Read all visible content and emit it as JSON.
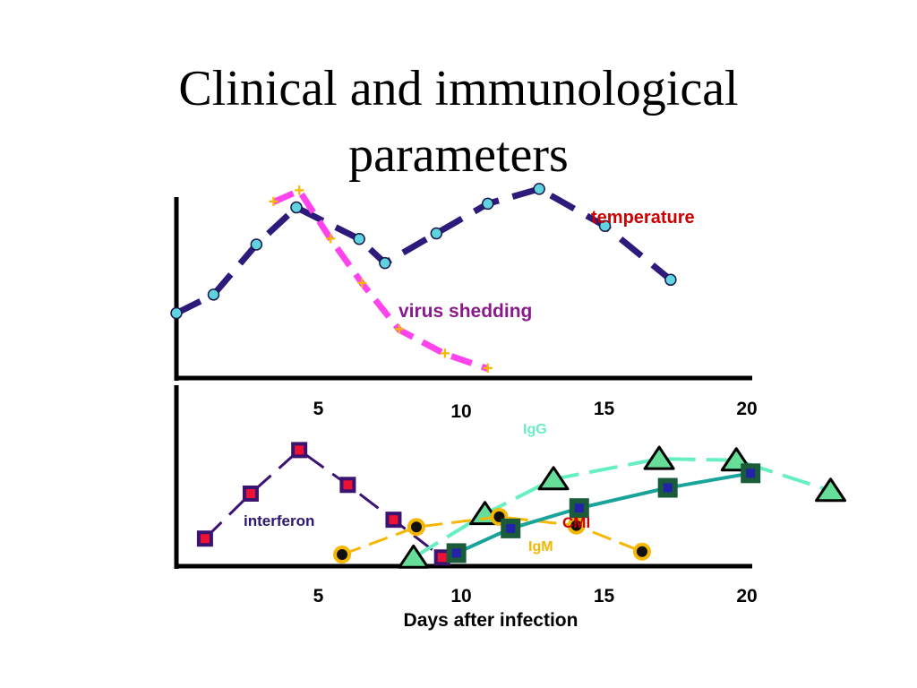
{
  "title_lines": [
    "Clinical and immunological",
    "parameters"
  ],
  "chart_data": [
    {
      "type": "line",
      "panel": "top",
      "x_range": [
        0,
        20
      ],
      "y_range": [
        0,
        10
      ],
      "axes_drawn": [
        "left",
        "bottom"
      ],
      "series": [
        {
          "name": "temperature",
          "color": "#2e1a7a",
          "marker": "circle",
          "marker_fill": "#5fd3e0",
          "label_color": "#cc0000",
          "x": [
            0,
            1.3,
            2.8,
            4.2,
            6.4,
            7.3,
            9.1,
            10.9,
            12.7,
            15.0,
            17.3
          ],
          "y": [
            3.5,
            4.5,
            7.2,
            9.2,
            7.5,
            6.2,
            7.8,
            9.4,
            10.2,
            8.2,
            5.3
          ]
        },
        {
          "name": "virus shedding",
          "color": "#ff44ee",
          "marker": "plus",
          "marker_color": "#f5b700",
          "label_color": "#8a1a8a",
          "x": [
            3.4,
            4.3,
            5.4,
            6.5,
            7.8,
            9.4,
            10.9
          ],
          "y": [
            9.5,
            10.1,
            7.5,
            5.1,
            2.6,
            1.3,
            0.5
          ]
        }
      ]
    },
    {
      "type": "line",
      "panel": "bottom",
      "x_range": [
        0,
        20
      ],
      "y_range": [
        0,
        10
      ],
      "xlabel": "Days after infection",
      "x_ticks_top": [
        "5",
        "10",
        "15",
        "20"
      ],
      "x_ticks_bottom": [
        "5",
        "10",
        "15",
        "20"
      ],
      "series": [
        {
          "name": "interferon",
          "color": "#3a1470",
          "marker": "square",
          "marker_fill": "#ee1133",
          "label_color": "#2b1670",
          "x": [
            1.0,
            2.6,
            4.3,
            6.0,
            7.6,
            9.3
          ],
          "y": [
            1.9,
            5.0,
            8.0,
            5.6,
            3.2,
            0.6
          ]
        },
        {
          "name": "IgG",
          "color": "#66f0c0",
          "marker": "triangle",
          "marker_fill": "#66dd99",
          "label_color": "#66f0c0",
          "x": [
            8.3,
            10.8,
            13.2,
            16.9,
            19.6,
            22.9
          ],
          "y": [
            0.6,
            3.6,
            6.0,
            7.4,
            7.3,
            5.2
          ]
        },
        {
          "name": "IgM",
          "color": "#f5b700",
          "marker": "dot-ring",
          "marker_fill": "#111111",
          "label_color": "#f5b700",
          "x": [
            5.8,
            8.4,
            11.3,
            14.0,
            16.3
          ],
          "y": [
            0.8,
            2.7,
            3.4,
            2.8,
            1.0
          ]
        },
        {
          "name": "CMI",
          "color": "#1aa39a",
          "marker": "square",
          "marker_fill": "#2222aa",
          "marker_border": "#1a5c3a",
          "label_color": "#cc0000",
          "x": [
            9.8,
            11.7,
            14.1,
            17.2,
            20.1
          ],
          "y": [
            0.9,
            2.6,
            4.0,
            5.4,
            6.4
          ]
        }
      ]
    }
  ]
}
